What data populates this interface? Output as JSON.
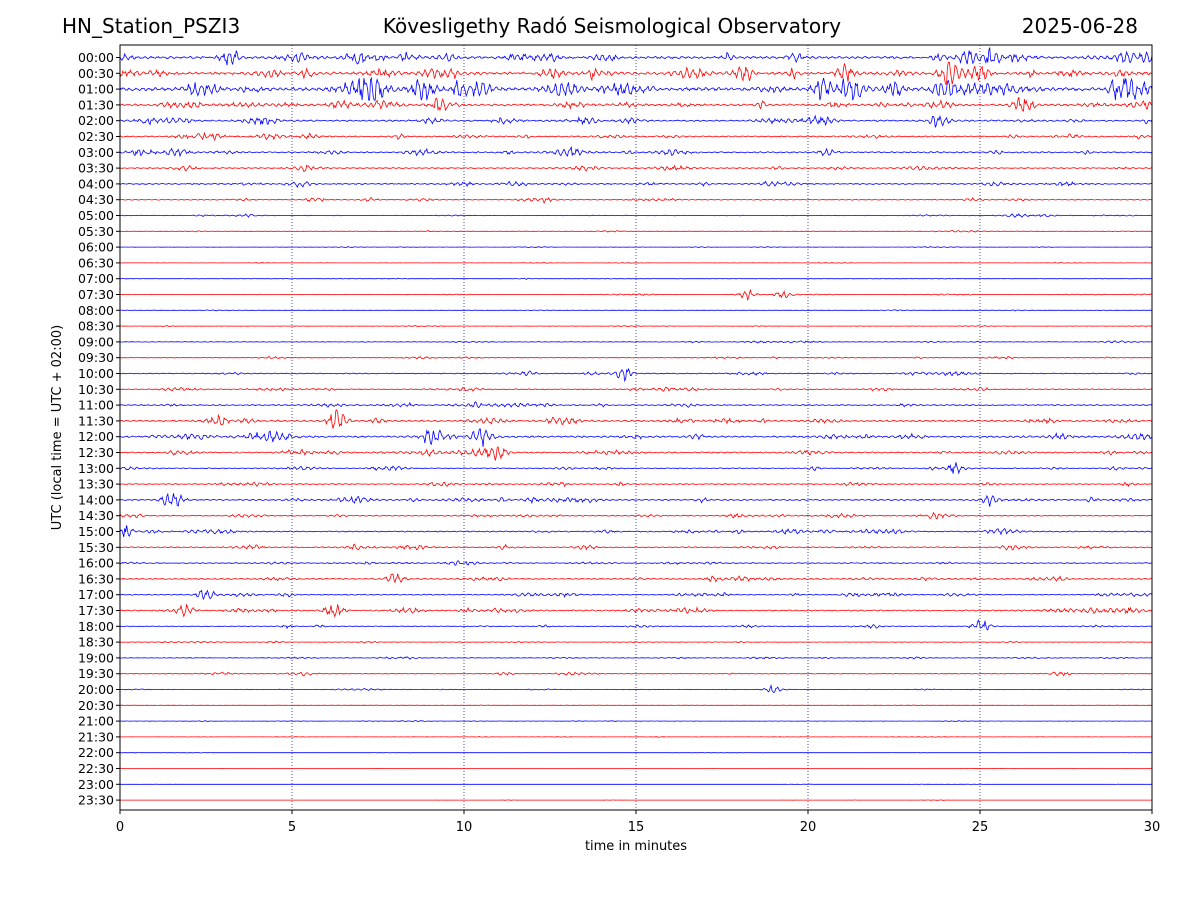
{
  "header": {
    "station": "HN_Station_PSZI3",
    "observatory": "Kövesligethy Radó Seismological Observatory",
    "date": "2025-06-28"
  },
  "chart_data": {
    "type": "line",
    "title": "Kövesligethy Radó Seismological Observatory",
    "xlabel": "time in minutes",
    "ylabel": "UTC (local time = UTC + 02:00)",
    "xlim": [
      0,
      30
    ],
    "xticks": [
      0,
      5,
      10,
      15,
      20,
      25,
      30
    ],
    "vertical_gridlines_at": [
      5,
      10,
      15,
      20,
      25
    ],
    "grid": "dotted vertical lines",
    "rows": [
      "00:00",
      "00:30",
      "01:00",
      "01:30",
      "02:00",
      "02:30",
      "03:00",
      "03:30",
      "04:00",
      "04:30",
      "05:00",
      "05:30",
      "06:00",
      "06:30",
      "07:00",
      "07:30",
      "08:00",
      "08:30",
      "09:00",
      "09:30",
      "10:00",
      "10:30",
      "11:00",
      "11:30",
      "12:00",
      "12:30",
      "13:00",
      "13:30",
      "14:00",
      "14:30",
      "15:00",
      "15:30",
      "16:00",
      "16:30",
      "17:00",
      "17:30",
      "18:00",
      "18:30",
      "19:00",
      "19:30",
      "20:00",
      "20:30",
      "21:00",
      "21:30",
      "22:00",
      "22:30",
      "23:00",
      "23:30"
    ],
    "trace_colors": [
      "#0000ff",
      "#ff0000"
    ],
    "relative_activity": [
      0.55,
      0.6,
      0.75,
      0.45,
      0.35,
      0.3,
      0.32,
      0.22,
      0.25,
      0.2,
      0.12,
      0.08,
      0.05,
      0.04,
      0.05,
      0.1,
      0.06,
      0.06,
      0.12,
      0.12,
      0.2,
      0.22,
      0.25,
      0.35,
      0.4,
      0.3,
      0.22,
      0.22,
      0.3,
      0.22,
      0.25,
      0.25,
      0.2,
      0.25,
      0.22,
      0.3,
      0.15,
      0.1,
      0.12,
      0.14,
      0.1,
      0.05,
      0.06,
      0.04,
      0.03,
      0.02,
      0.02,
      0.02
    ],
    "events": [
      {
        "row": "00:00",
        "minute": 3.2,
        "amp": 1.6
      },
      {
        "row": "00:00",
        "minute": 25.3,
        "amp": 1.4
      },
      {
        "row": "00:30",
        "minute": 21.1,
        "amp": 1.5
      },
      {
        "row": "00:30",
        "minute": 24.1,
        "amp": 1.6
      },
      {
        "row": "01:00",
        "minute": 8.8,
        "amp": 1.8
      },
      {
        "row": "01:00",
        "minute": 14.6,
        "amp": 1.6
      },
      {
        "row": "01:00",
        "minute": 20.4,
        "amp": 2.0
      },
      {
        "row": "01:00",
        "minute": 22.5,
        "amp": 1.6
      },
      {
        "row": "01:30",
        "minute": 26.2,
        "amp": 1.3
      },
      {
        "row": "02:00",
        "minute": 23.8,
        "amp": 1.4
      },
      {
        "row": "07:30",
        "minute": 18.2,
        "amp": 0.9
      },
      {
        "row": "07:30",
        "minute": 19.3,
        "amp": 0.7
      },
      {
        "row": "10:00",
        "minute": 14.6,
        "amp": 1.2
      },
      {
        "row": "11:30",
        "minute": 6.3,
        "amp": 1.4
      },
      {
        "row": "12:00",
        "minute": 9.0,
        "amp": 1.3
      },
      {
        "row": "12:00",
        "minute": 10.5,
        "amp": 1.5
      },
      {
        "row": "12:30",
        "minute": 11.0,
        "amp": 1.1
      },
      {
        "row": "13:00",
        "minute": 24.3,
        "amp": 1.0
      },
      {
        "row": "14:00",
        "minute": 1.5,
        "amp": 1.3
      },
      {
        "row": "14:00",
        "minute": 25.3,
        "amp": 1.0
      },
      {
        "row": "15:00",
        "minute": 0.1,
        "amp": 1.1
      },
      {
        "row": "16:30",
        "minute": 8.0,
        "amp": 1.1
      },
      {
        "row": "17:00",
        "minute": 2.5,
        "amp": 1.0
      },
      {
        "row": "17:30",
        "minute": 1.9,
        "amp": 1.2
      },
      {
        "row": "17:30",
        "minute": 6.2,
        "amp": 1.4
      },
      {
        "row": "18:00",
        "minute": 25.0,
        "amp": 1.2
      },
      {
        "row": "20:00",
        "minute": 19.0,
        "amp": 0.7
      }
    ]
  }
}
